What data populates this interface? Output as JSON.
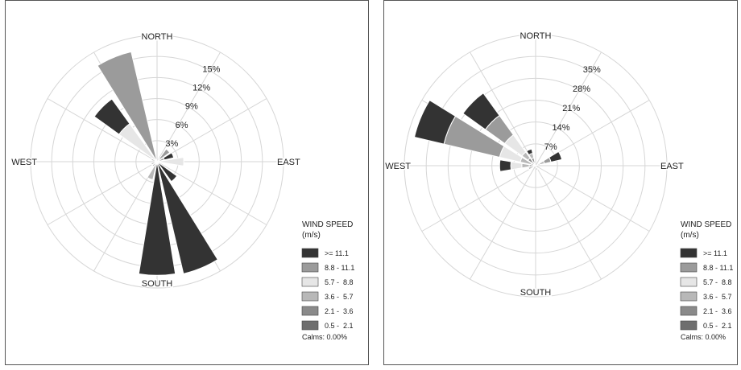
{
  "chart_data": [
    {
      "type": "windrose",
      "directions": [
        "N",
        "NNE",
        "NE",
        "ENE",
        "E",
        "ESE",
        "SE",
        "SSE",
        "S",
        "SSW",
        "SW",
        "WSW",
        "W",
        "WNW",
        "NW",
        "NNW"
      ],
      "compass_labels": {
        "N": "NORTH",
        "E": "EAST",
        "S": "SOUTH",
        "W": "WEST"
      },
      "radial_ticks": [
        "3%",
        "6%",
        "9%",
        "12%",
        "15%"
      ],
      "radial_max": 17,
      "legend_title_1": "WIND SPEED",
      "legend_title_2": "(m/s)",
      "calms_label": "Calms: 0.00%",
      "legend_position": "right",
      "bins": [
        {
          "name": "0.5 -  2.1",
          "color": "#6e6e6e"
        },
        {
          "name": "2.1 -  3.6",
          "color": "#8a8a8a"
        },
        {
          "name": "3.6 -  5.7",
          "color": "#b8b8b8"
        },
        {
          "name": "5.7 -  8.8",
          "color": "#e6e6e6"
        },
        {
          "name": "8.8 - 11.1",
          "color": "#9b9b9b"
        },
        {
          "name": ">= 11.1",
          "color": "#333333"
        }
      ],
      "values": [
        [
          0,
          0,
          0,
          0,
          0,
          0
        ],
        [
          0,
          0,
          0,
          0,
          0,
          0
        ],
        [
          0,
          0.5,
          0,
          0,
          1.6,
          0
        ],
        [
          0,
          0,
          0,
          0,
          1,
          1.3
        ],
        [
          0,
          0,
          0,
          3.6,
          0,
          0
        ],
        [
          0,
          0,
          0,
          0,
          0,
          0
        ],
        [
          0,
          0,
          0,
          0,
          0,
          3.3
        ],
        [
          0,
          0,
          0,
          0,
          0,
          15.5
        ],
        [
          0,
          0,
          0,
          0,
          0,
          15.3
        ],
        [
          0,
          0,
          2.5,
          0,
          0,
          0
        ],
        [
          0,
          0,
          0.8,
          0,
          0,
          0
        ],
        [
          0,
          0,
          0.8,
          0,
          0,
          0
        ],
        [
          0,
          0,
          0,
          0,
          0,
          0
        ],
        [
          0,
          0,
          0.8,
          0,
          0,
          0
        ],
        [
          0,
          0,
          0,
          6.3,
          0,
          4.1
        ],
        [
          0,
          0,
          0,
          0,
          15.2,
          0
        ]
      ]
    },
    {
      "type": "windrose",
      "directions": [
        "N",
        "NNE",
        "NE",
        "ENE",
        "E",
        "ESE",
        "SE",
        "SSE",
        "S",
        "SSW",
        "SW",
        "WSW",
        "W",
        "WNW",
        "NW",
        "NNW"
      ],
      "compass_labels": {
        "N": "NORTH",
        "E": "EAST",
        "S": "SOUTH",
        "W": "WEST"
      },
      "radial_ticks": [
        "7%",
        "14%",
        "21%",
        "28%",
        "35%"
      ],
      "radial_max": 39,
      "legend_title_1": "WIND SPEED",
      "legend_title_2": "(m/s)",
      "calms_label": "Calms: 0.00%",
      "legend_position": "right",
      "bins": [
        {
          "name": "0.5 -  2.1",
          "color": "#6e6e6e"
        },
        {
          "name": "2.1 -  3.6",
          "color": "#8a8a8a"
        },
        {
          "name": "3.6 -  5.7",
          "color": "#b8b8b8"
        },
        {
          "name": "5.7 -  8.8",
          "color": "#e6e6e6"
        },
        {
          "name": "8.8 - 11.1",
          "color": "#9b9b9b"
        },
        {
          "name": ">= 11.1",
          "color": "#333333"
        }
      ],
      "values": [
        [
          0,
          0,
          0,
          0,
          0,
          0
        ],
        [
          0,
          0,
          0,
          0,
          0,
          0
        ],
        [
          0,
          0,
          0,
          0,
          0,
          0
        ],
        [
          0.5,
          0.8,
          1.4,
          0,
          2,
          3.3
        ],
        [
          0,
          0,
          0,
          0,
          0,
          0
        ],
        [
          0,
          0,
          0,
          0,
          0,
          0
        ],
        [
          0,
          0,
          0,
          0,
          0,
          0
        ],
        [
          1.3,
          0,
          0,
          0,
          0,
          0
        ],
        [
          0,
          0,
          0,
          0,
          0,
          0
        ],
        [
          0,
          0,
          0,
          0,
          0,
          0
        ],
        [
          0,
          0,
          0,
          0,
          0,
          0
        ],
        [
          0,
          0,
          2.2,
          0,
          0,
          0
        ],
        [
          0.5,
          1.4,
          2.2,
          3.3,
          0,
          3.3
        ],
        [
          0,
          1.4,
          3.3,
          6.3,
          17,
          9
        ],
        [
          1.4,
          1.4,
          2.2,
          6.3,
          7.1,
          8.2
        ],
        [
          1,
          1.4,
          1.4,
          0,
          0,
          1.3
        ]
      ]
    }
  ]
}
